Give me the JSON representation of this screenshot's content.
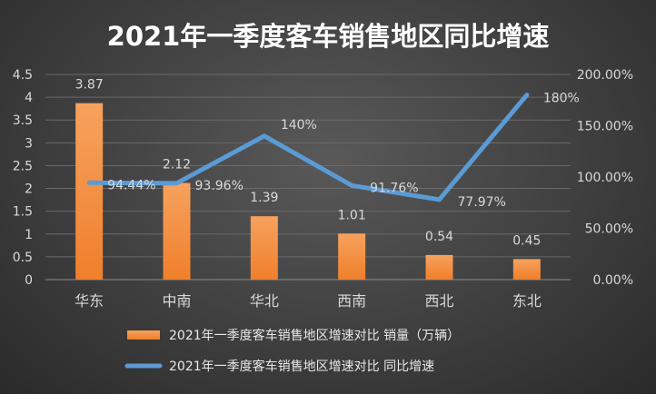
{
  "chart_data": {
    "type": "bar+line",
    "title": "2021年一季度客车销售地区同比增速",
    "categories": [
      "华东",
      "中南",
      "华北",
      "西南",
      "西北",
      "东北"
    ],
    "series": [
      {
        "name": "2021年一季度客车销售地区增速对比 销量（万辆）",
        "type": "bar",
        "axis": "left",
        "values": [
          3.87,
          2.12,
          1.39,
          1.01,
          0.54,
          0.45
        ],
        "labels": [
          "3.87",
          "2.12",
          "1.39",
          "1.01",
          "0.54",
          "0.45"
        ]
      },
      {
        "name": "2021年一季度客车销售地区增速对比 同比增速",
        "type": "line",
        "axis": "right",
        "values": [
          0.9444,
          0.9396,
          1.4,
          0.9176,
          0.7797,
          1.8
        ],
        "labels": [
          "94.44%",
          "93.96%",
          "140%",
          "91.76%",
          "77.97%",
          "180%"
        ]
      }
    ],
    "y_left": {
      "min": 0,
      "max": 4.5,
      "ticks": [
        "0",
        "0.5",
        "1",
        "1.5",
        "2",
        "2.5",
        "3",
        "3.5",
        "4",
        "4.5"
      ]
    },
    "y_right": {
      "min": 0,
      "max": 2.0,
      "ticks": [
        "0.00%",
        "50.00%",
        "100.00%",
        "150.00%",
        "200.00%"
      ]
    },
    "grid": true,
    "legend": "bottom",
    "colors": {
      "bar": "#f07f2b",
      "bar_light": "#f6a25e",
      "line": "#5b9bd5"
    }
  }
}
